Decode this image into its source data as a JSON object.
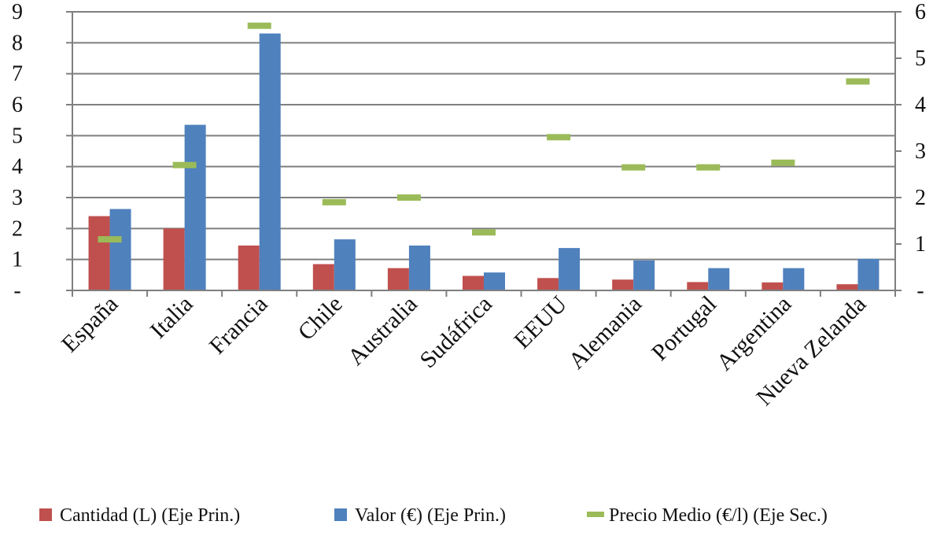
{
  "chart_data": {
    "type": "bar",
    "categories": [
      "España",
      "Italia",
      "Francia",
      "Chile",
      "Australia",
      "Sudáfrica",
      "EEUU",
      "Alemania",
      "Portugal",
      "Argentina",
      "Nueva Zelanda"
    ],
    "series": [
      {
        "name": "Cantidad (L) (Eje Prin.)",
        "axis": "primary",
        "kind": "bar",
        "color": "#c0504d",
        "values": [
          2.4,
          2.0,
          1.45,
          0.85,
          0.72,
          0.47,
          0.4,
          0.35,
          0.27,
          0.26,
          0.2
        ]
      },
      {
        "name": "Valor (€) (Eje Prin.)",
        "axis": "primary",
        "kind": "bar",
        "color": "#4f81bd",
        "values": [
          2.63,
          5.35,
          8.3,
          1.65,
          1.45,
          0.58,
          1.37,
          0.97,
          0.72,
          0.72,
          1.02
        ]
      },
      {
        "name": "Precio Medio (€/l) (Eje Sec.)",
        "axis": "secondary",
        "kind": "marker",
        "color": "#9bbb59",
        "values": [
          1.1,
          2.7,
          5.7,
          1.9,
          2.0,
          1.25,
          3.3,
          2.65,
          2.65,
          2.75,
          4.5
        ]
      }
    ],
    "y_primary": {
      "ylim": [
        0,
        9
      ],
      "ticks": [
        "-",
        "1",
        "2",
        "3",
        "4",
        "5",
        "6",
        "7",
        "8",
        "9"
      ]
    },
    "y_secondary": {
      "ylim": [
        0,
        6
      ],
      "ticks": [
        "-",
        "1",
        "2",
        "3",
        "4",
        "5",
        "6"
      ]
    },
    "grid": true,
    "legend_position": "bottom",
    "title": "",
    "xlabel": "",
    "ylabel": ""
  }
}
